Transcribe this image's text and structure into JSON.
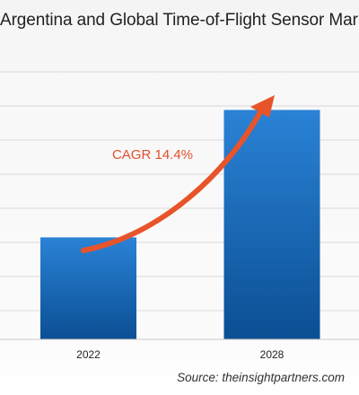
{
  "chart_data": {
    "type": "bar",
    "title": "Argentina and Global Time-of-Flight Sensor Market",
    "categories": [
      "2022",
      "2028"
    ],
    "values": [
      1.0,
      2.25
    ],
    "xlabel": "",
    "ylabel": "",
    "ylim": [
      0,
      2.8
    ],
    "grid": true,
    "annotation": "CAGR 14.4%",
    "source": "Source: theinsightpartners.com",
    "colors": {
      "bar_top": "#2a82d6",
      "bar_bottom": "#0b4f94",
      "arrow": "#e8542a",
      "grid": "#d9d9d9"
    }
  }
}
